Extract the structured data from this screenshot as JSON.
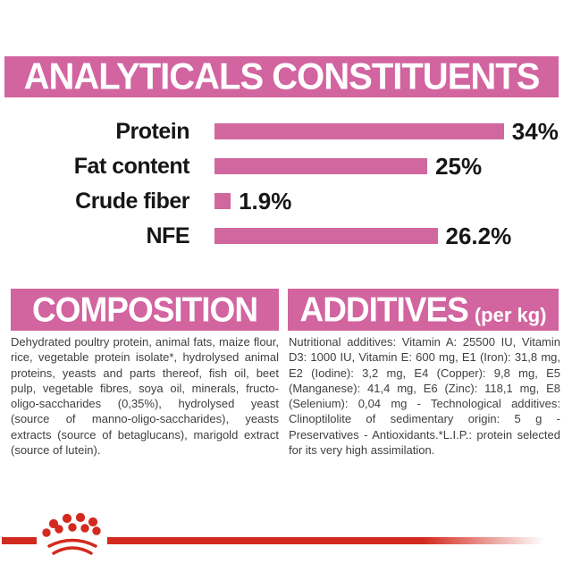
{
  "colors": {
    "pink": "#d2649f",
    "bar_pink": "#d0679e",
    "red": "#d22a1e",
    "label_black": "#161616",
    "body_gray": "#3f3f3f",
    "banner_text": "#ffffff"
  },
  "analyticals": {
    "title": "ANALYTICALS CONSTITUENTS"
  },
  "chart_data": {
    "type": "bar",
    "orientation": "horizontal",
    "title": "ANALYTICALS CONSTITUENTS",
    "categories": [
      "Protein",
      "Fat content",
      "Crude fiber",
      "NFE"
    ],
    "values": [
      34,
      25,
      1.9,
      26.2
    ],
    "value_labels": [
      "34%",
      "25%",
      "1.9%",
      "26.2%"
    ],
    "unit": "%",
    "xlim": [
      0,
      42
    ],
    "grid": false,
    "legend": false,
    "bar_color": "#d0679e"
  },
  "composition": {
    "title": "COMPOSITION",
    "body": "Dehydrated poultry protein, animal fats, maize flour, rice, vegetable protein isolate*, hydrolysed animal proteins, yeasts and parts thereof, fish oil, beet pulp, vegetable fibres, soya oil, minerals, fructo-oligo-saccharides (0,35%), hydrolysed yeast (source of manno-oligo-saccharides), yeasts extracts (source of betaglucans), marigold extract (source of lutein)."
  },
  "additives": {
    "title": "ADDITIVES",
    "unit_label": "(per kg)",
    "body": "Nutritional additives: Vitamin A: 25500 IU, Vitamin D3: 1000 IU, Vitamin E: 600 mg, E1 (Iron): 31,8 mg, E2 (Iodine): 3,2 mg, E4 (Copper): 9,8 mg, E5 (Manganese): 41,4 mg, E6 (Zinc): 118,1 mg, E8 (Selenium): 0,04 mg - Technological additives: Clinoptilolite of sedimentary origin: 5 g - Preservatives - Antioxidants.*L.I.P.: protein selected for its very high assimilation."
  },
  "footer": {
    "logo": "royal-canin-crown"
  }
}
